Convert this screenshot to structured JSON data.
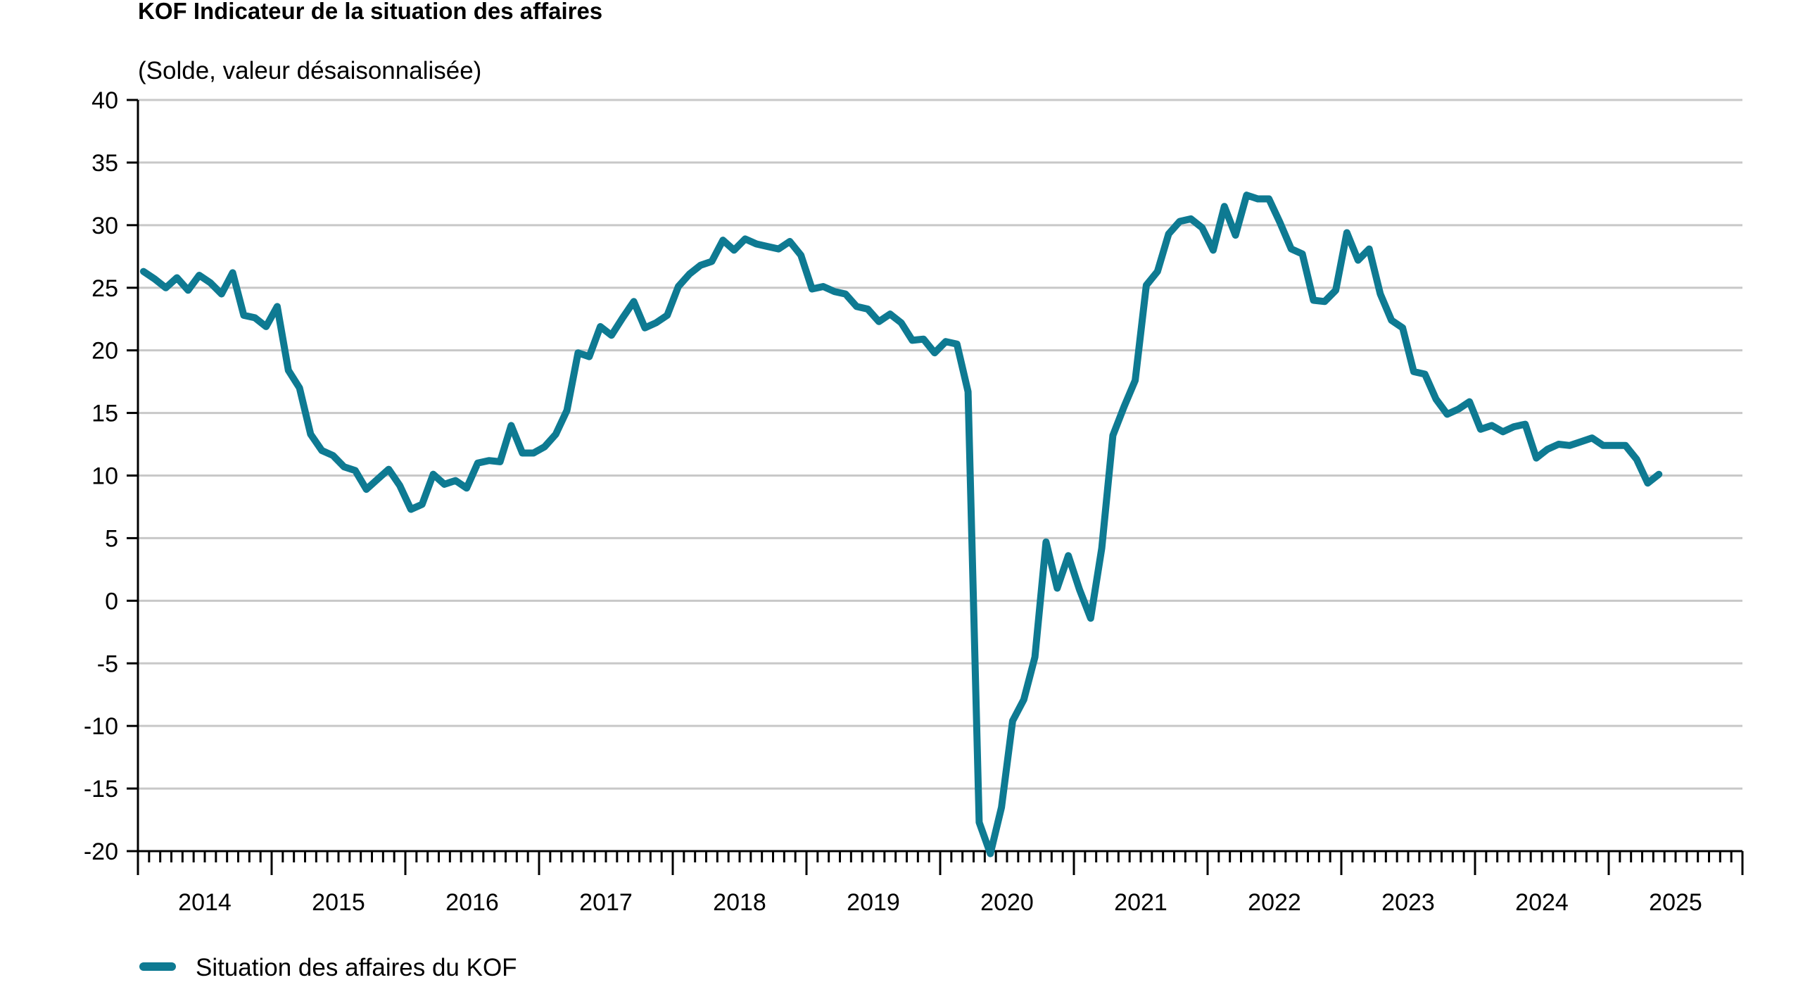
{
  "chart_data": {
    "type": "line",
    "title": "KOF Indicateur de la situation des affaires",
    "subtitle": "(Solde, valeur désaisonnalisée)",
    "xlabel": "",
    "ylabel": "",
    "ylim": [
      -20,
      40
    ],
    "y_ticks": [
      40,
      35,
      30,
      25,
      20,
      15,
      10,
      5,
      0,
      -5,
      -10,
      -15,
      -20
    ],
    "x_tick_labels": [
      "2014",
      "2015",
      "2016",
      "2017",
      "2018",
      "2019",
      "2020",
      "2021",
      "2022",
      "2023",
      "2024",
      "2025"
    ],
    "grid": "horizontal",
    "legend_position": "bottom-left",
    "colors": {
      "series": "#0e7a92",
      "grid": "#c8c8c8",
      "axis": "#000000"
    },
    "x_range": [
      "2014-01",
      "2025-12"
    ],
    "series": [
      {
        "name": "Situation des affaires du KOF",
        "points": [
          [
            "2014-01",
            26.3
          ],
          [
            "2014-02",
            25.7
          ],
          [
            "2014-03",
            25.0
          ],
          [
            "2014-04",
            25.8
          ],
          [
            "2014-05",
            24.8
          ],
          [
            "2014-06",
            26.0
          ],
          [
            "2014-07",
            25.4
          ],
          [
            "2014-08",
            24.5
          ],
          [
            "2014-09",
            26.2
          ],
          [
            "2014-10",
            22.8
          ],
          [
            "2014-11",
            22.6
          ],
          [
            "2014-12",
            21.9
          ],
          [
            "2015-01",
            23.5
          ],
          [
            "2015-02",
            18.4
          ],
          [
            "2015-03",
            17.0
          ],
          [
            "2015-04",
            13.3
          ],
          [
            "2015-05",
            12.0
          ],
          [
            "2015-06",
            11.6
          ],
          [
            "2015-07",
            10.7
          ],
          [
            "2015-08",
            10.4
          ],
          [
            "2015-09",
            8.9
          ],
          [
            "2015-10",
            9.7
          ],
          [
            "2015-11",
            10.5
          ],
          [
            "2015-12",
            9.2
          ],
          [
            "2016-01",
            7.3
          ],
          [
            "2016-02",
            7.7
          ],
          [
            "2016-03",
            10.1
          ],
          [
            "2016-04",
            9.3
          ],
          [
            "2016-05",
            9.6
          ],
          [
            "2016-06",
            9.0
          ],
          [
            "2016-07",
            11.0
          ],
          [
            "2016-08",
            11.2
          ],
          [
            "2016-09",
            11.1
          ],
          [
            "2016-10",
            14.0
          ],
          [
            "2016-11",
            11.8
          ],
          [
            "2016-12",
            11.8
          ],
          [
            "2017-01",
            12.3
          ],
          [
            "2017-02",
            13.3
          ],
          [
            "2017-03",
            15.2
          ],
          [
            "2017-04",
            19.8
          ],
          [
            "2017-05",
            19.5
          ],
          [
            "2017-06",
            21.9
          ],
          [
            "2017-07",
            21.2
          ],
          [
            "2017-08",
            22.6
          ],
          [
            "2017-09",
            23.9
          ],
          [
            "2017-10",
            21.8
          ],
          [
            "2017-11",
            22.2
          ],
          [
            "2017-12",
            22.8
          ],
          [
            "2018-01",
            25.1
          ],
          [
            "2018-02",
            26.1
          ],
          [
            "2018-03",
            26.8
          ],
          [
            "2018-04",
            27.1
          ],
          [
            "2018-05",
            28.8
          ],
          [
            "2018-06",
            28.0
          ],
          [
            "2018-07",
            28.9
          ],
          [
            "2018-08",
            28.5
          ],
          [
            "2018-09",
            28.3
          ],
          [
            "2018-10",
            28.1
          ],
          [
            "2018-11",
            28.7
          ],
          [
            "2018-12",
            27.6
          ],
          [
            "2019-01",
            24.9
          ],
          [
            "2019-02",
            25.1
          ],
          [
            "2019-03",
            24.7
          ],
          [
            "2019-04",
            24.5
          ],
          [
            "2019-05",
            23.5
          ],
          [
            "2019-06",
            23.3
          ],
          [
            "2019-07",
            22.3
          ],
          [
            "2019-08",
            22.9
          ],
          [
            "2019-09",
            22.2
          ],
          [
            "2019-10",
            20.8
          ],
          [
            "2019-11",
            20.9
          ],
          [
            "2019-12",
            19.8
          ],
          [
            "2020-01",
            20.7
          ],
          [
            "2020-02",
            20.5
          ],
          [
            "2020-03",
            16.7
          ],
          [
            "2020-04",
            -17.7
          ],
          [
            "2020-05",
            -20.2
          ],
          [
            "2020-06",
            -16.5
          ],
          [
            "2020-07",
            -9.6
          ],
          [
            "2020-08",
            -7.9
          ],
          [
            "2020-09",
            -4.5
          ],
          [
            "2020-10",
            4.7
          ],
          [
            "2020-11",
            1.0
          ],
          [
            "2020-12",
            3.6
          ],
          [
            "2021-01",
            0.9
          ],
          [
            "2021-02",
            -1.4
          ],
          [
            "2021-03",
            4.2
          ],
          [
            "2021-04",
            13.2
          ],
          [
            "2021-05",
            15.5
          ],
          [
            "2021-06",
            17.6
          ],
          [
            "2021-07",
            25.2
          ],
          [
            "2021-08",
            26.3
          ],
          [
            "2021-09",
            29.3
          ],
          [
            "2021-10",
            30.3
          ],
          [
            "2021-11",
            30.5
          ],
          [
            "2021-12",
            29.8
          ],
          [
            "2022-01",
            28.0
          ],
          [
            "2022-02",
            31.5
          ],
          [
            "2022-03",
            29.2
          ],
          [
            "2022-04",
            32.4
          ],
          [
            "2022-05",
            32.1
          ],
          [
            "2022-06",
            32.1
          ],
          [
            "2022-07",
            30.2
          ],
          [
            "2022-08",
            28.1
          ],
          [
            "2022-09",
            27.7
          ],
          [
            "2022-10",
            24.0
          ],
          [
            "2022-11",
            23.9
          ],
          [
            "2022-12",
            24.8
          ],
          [
            "2023-01",
            29.4
          ],
          [
            "2023-02",
            27.2
          ],
          [
            "2023-03",
            28.1
          ],
          [
            "2023-04",
            24.5
          ],
          [
            "2023-05",
            22.4
          ],
          [
            "2023-06",
            21.8
          ],
          [
            "2023-07",
            18.3
          ],
          [
            "2023-08",
            18.1
          ],
          [
            "2023-09",
            16.1
          ],
          [
            "2023-10",
            14.9
          ],
          [
            "2023-11",
            15.3
          ],
          [
            "2023-12",
            15.9
          ],
          [
            "2024-01",
            13.7
          ],
          [
            "2024-02",
            14.0
          ],
          [
            "2024-03",
            13.5
          ],
          [
            "2024-04",
            13.9
          ],
          [
            "2024-05",
            14.1
          ],
          [
            "2024-06",
            11.4
          ],
          [
            "2024-07",
            12.1
          ],
          [
            "2024-08",
            12.5
          ],
          [
            "2024-09",
            12.4
          ],
          [
            "2024-10",
            12.7
          ],
          [
            "2024-11",
            13.0
          ],
          [
            "2024-12",
            12.4
          ],
          [
            "2025-01",
            12.4
          ],
          [
            "2025-02",
            12.4
          ],
          [
            "2025-03",
            11.3
          ],
          [
            "2025-04",
            9.4
          ],
          [
            "2025-05",
            10.1
          ]
        ]
      }
    ]
  }
}
